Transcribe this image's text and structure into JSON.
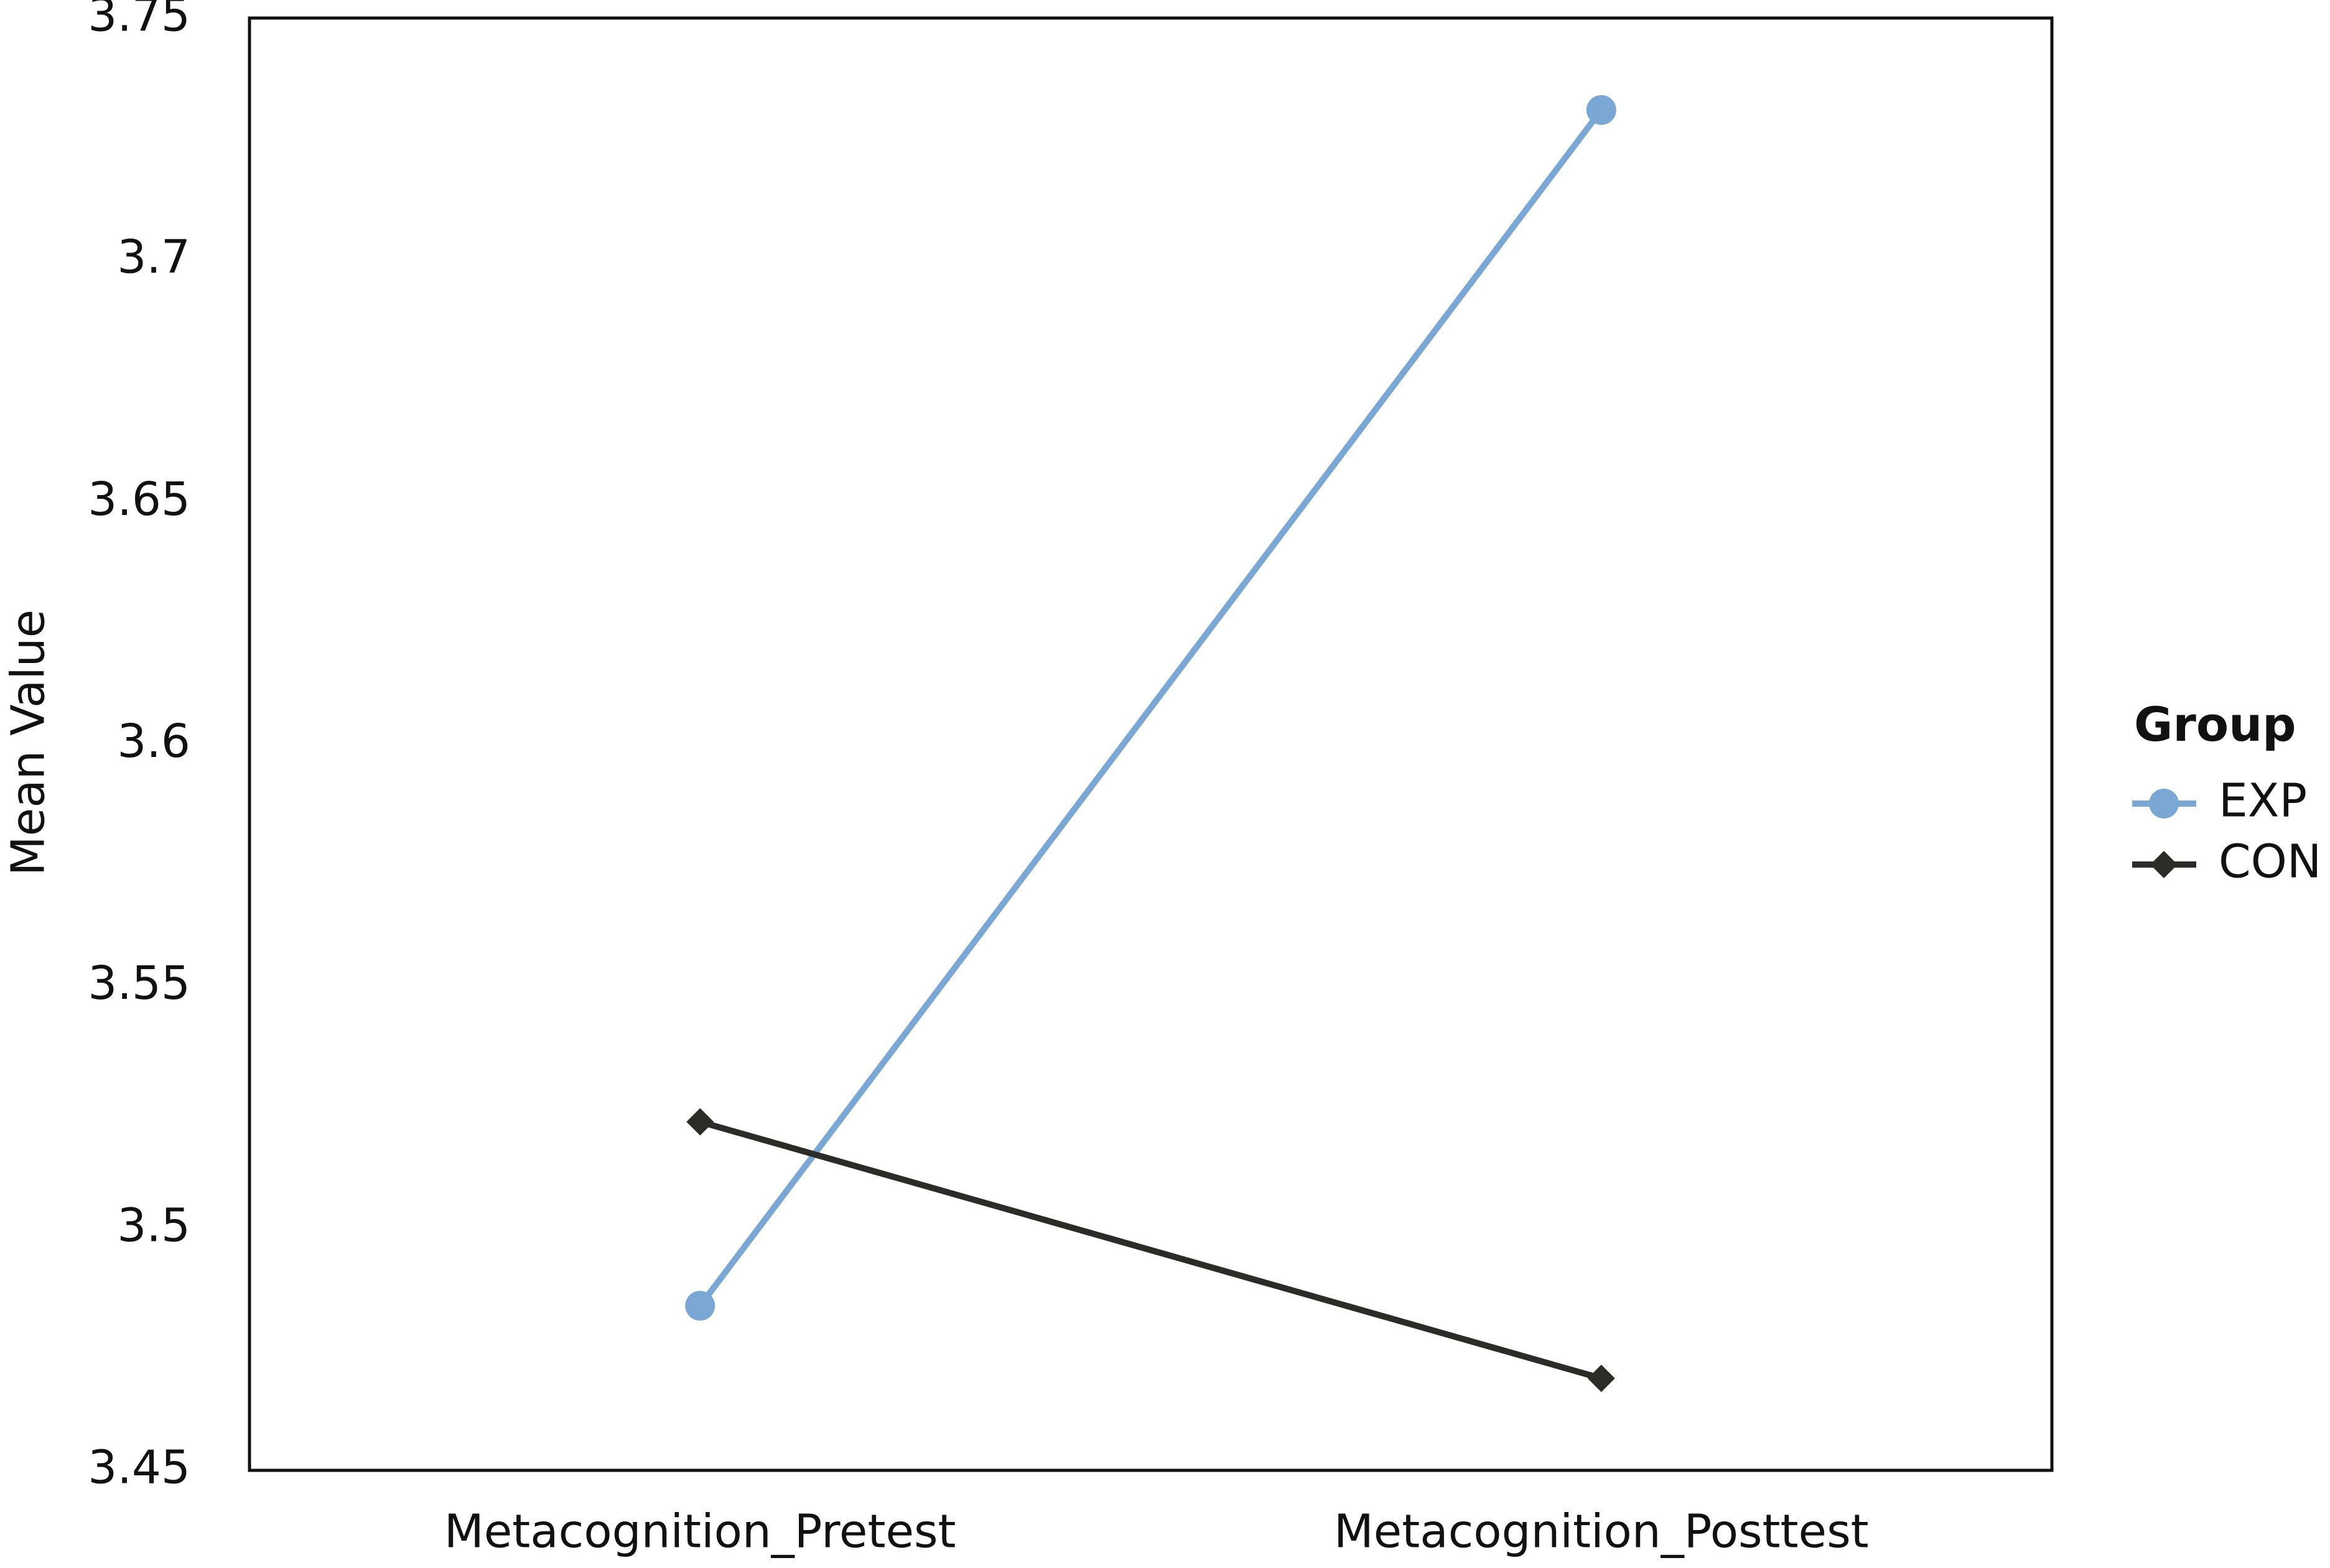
{
  "chart_data": {
    "type": "line",
    "categories": [
      "Metacognition_Pretest",
      "Metacognition_Posttest"
    ],
    "y_label": "Mean Value",
    "legend_title": "Group",
    "legend_position": "right",
    "grid": false,
    "series": [
      {
        "name": "EXP",
        "color": "#7ba7d4",
        "marker": "circle",
        "values": [
          3.484,
          3.731
        ]
      },
      {
        "name": "CON",
        "color": "#2b2b28",
        "marker": "diamond",
        "values": [
          3.522,
          3.469
        ]
      }
    ],
    "ylim": [
      3.45,
      3.75
    ],
    "yticks": [
      3.45,
      3.5,
      3.55,
      3.6,
      3.65,
      3.7,
      3.75
    ]
  }
}
